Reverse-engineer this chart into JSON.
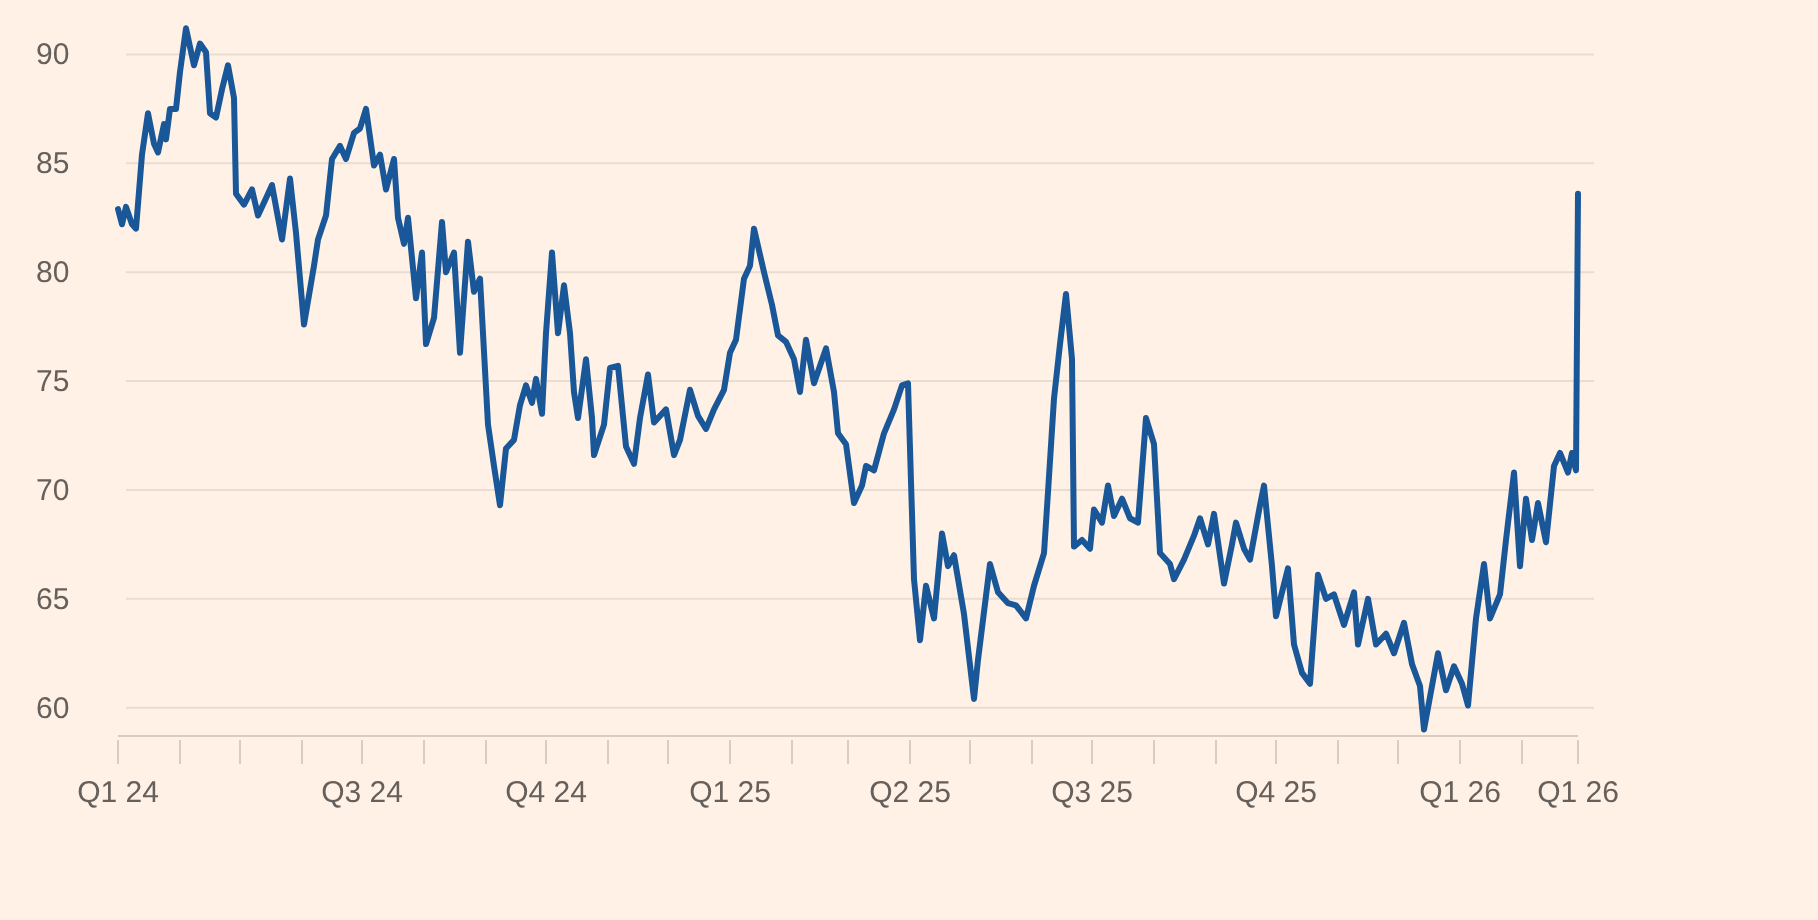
{
  "chart_data": {
    "type": "line",
    "grid": "y",
    "marker": "none",
    "line_style": "solid",
    "xlim": [
      "2024-03-01",
      "2026-03-01"
    ],
    "ylim": [
      58.7,
      92.5
    ],
    "yticks": [
      60,
      65,
      70,
      75,
      80,
      85,
      90
    ],
    "xticks": [
      {
        "value": "2024-03-01",
        "label": "Q1 24"
      },
      {
        "value": "2024-04-01",
        "label": null
      },
      {
        "value": "2024-05-01",
        "label": null
      },
      {
        "value": "2024-06-01",
        "label": null
      },
      {
        "value": "2024-07-01",
        "label": "Q3 24"
      },
      {
        "value": "2024-08-01",
        "label": null
      },
      {
        "value": "2024-09-01",
        "label": null
      },
      {
        "value": "2024-10-01",
        "label": "Q4 24"
      },
      {
        "value": "2024-11-01",
        "label": null
      },
      {
        "value": "2024-12-01",
        "label": null
      },
      {
        "value": "2025-01-01",
        "label": "Q1 25"
      },
      {
        "value": "2025-02-01",
        "label": null
      },
      {
        "value": "2025-03-01",
        "label": null
      },
      {
        "value": "2025-04-01",
        "label": "Q2 25"
      },
      {
        "value": "2025-05-01",
        "label": null
      },
      {
        "value": "2025-06-01",
        "label": null
      },
      {
        "value": "2025-07-01",
        "label": "Q3 25"
      },
      {
        "value": "2025-08-01",
        "label": null
      },
      {
        "value": "2025-09-01",
        "label": null
      },
      {
        "value": "2025-10-01",
        "label": "Q4 25"
      },
      {
        "value": "2025-11-01",
        "label": null
      },
      {
        "value": "2025-12-01",
        "label": null
      },
      {
        "value": "2026-01-01",
        "label": "Q1 26"
      },
      {
        "value": "2026-02-01",
        "label": null
      },
      {
        "value": "2026-03-01",
        "label": "Q1 26"
      }
    ],
    "x": [
      "2024-03-01",
      "2024-03-03",
      "2024-03-05",
      "2024-03-08",
      "2024-03-10",
      "2024-03-13",
      "2024-03-16",
      "2024-03-19",
      "2024-03-21",
      "2024-03-24",
      "2024-03-25",
      "2024-03-27",
      "2024-03-30",
      "2024-04-01",
      "2024-04-04",
      "2024-04-08",
      "2024-04-11",
      "2024-04-14",
      "2024-04-16",
      "2024-04-19",
      "2024-04-22",
      "2024-04-25",
      "2024-04-28",
      "2024-04-29",
      "2024-05-03",
      "2024-05-07",
      "2024-05-10",
      "2024-05-14",
      "2024-05-17",
      "2024-05-22",
      "2024-05-26",
      "2024-05-29",
      "2024-06-02",
      "2024-06-07",
      "2024-06-09",
      "2024-06-13",
      "2024-06-16",
      "2024-06-20",
      "2024-06-23",
      "2024-06-27",
      "2024-06-30",
      "2024-07-03",
      "2024-07-07",
      "2024-07-10",
      "2024-07-13",
      "2024-07-17",
      "2024-07-19",
      "2024-07-22",
      "2024-07-24",
      "2024-07-28",
      "2024-07-31",
      "2024-08-02",
      "2024-08-06",
      "2024-08-10",
      "2024-08-12",
      "2024-08-16",
      "2024-08-19",
      "2024-08-23",
      "2024-08-26",
      "2024-08-29",
      "2024-09-02",
      "2024-09-05",
      "2024-09-08",
      "2024-09-11",
      "2024-09-15",
      "2024-09-18",
      "2024-09-21",
      "2024-09-24",
      "2024-09-26",
      "2024-09-29",
      "2024-10-01",
      "2024-10-04",
      "2024-10-07",
      "2024-10-10",
      "2024-10-13",
      "2024-10-15",
      "2024-10-17",
      "2024-10-21",
      "2024-10-24",
      "2024-10-25",
      "2024-10-30",
      "2024-11-02",
      "2024-11-06",
      "2024-11-10",
      "2024-11-14",
      "2024-11-17",
      "2024-11-21",
      "2024-11-24",
      "2024-11-30",
      "2024-12-04",
      "2024-12-07",
      "2024-12-12",
      "2024-12-16",
      "2024-12-20",
      "2024-12-24",
      "2024-12-29",
      "2025-01-01",
      "2025-01-04",
      "2025-01-08",
      "2025-01-11",
      "2025-01-13",
      "2025-01-18",
      "2025-01-22",
      "2025-01-25",
      "2025-01-29",
      "2025-02-02",
      "2025-02-05",
      "2025-02-08",
      "2025-02-12",
      "2025-02-18",
      "2025-02-22",
      "2025-02-24",
      "2025-02-28",
      "2025-03-04",
      "2025-03-08",
      "2025-03-10",
      "2025-03-14",
      "2025-03-19",
      "2025-03-24",
      "2025-03-28",
      "2025-03-31",
      "2025-04-03",
      "2025-04-06",
      "2025-04-09",
      "2025-04-13",
      "2025-04-17",
      "2025-04-20",
      "2025-04-23",
      "2025-04-28",
      "2025-05-03",
      "2025-05-05",
      "2025-05-11",
      "2025-05-15",
      "2025-05-20",
      "2025-05-24",
      "2025-05-29",
      "2025-06-02",
      "2025-06-07",
      "2025-06-09",
      "2025-06-12",
      "2025-06-15",
      "2025-06-18",
      "2025-06-21",
      "2025-06-22",
      "2025-06-26",
      "2025-06-30",
      "2025-07-02",
      "2025-07-06",
      "2025-07-09",
      "2025-07-12",
      "2025-07-16",
      "2025-07-20",
      "2025-07-24",
      "2025-07-28",
      "2025-08-01",
      "2025-08-04",
      "2025-08-09",
      "2025-08-11",
      "2025-08-16",
      "2025-08-21",
      "2025-08-24",
      "2025-08-28",
      "2025-08-31",
      "2025-09-05",
      "2025-09-09",
      "2025-09-11",
      "2025-09-15",
      "2025-09-18",
      "2025-09-23",
      "2025-09-25",
      "2025-09-29",
      "2025-10-01",
      "2025-10-04",
      "2025-10-07",
      "2025-10-10",
      "2025-10-14",
      "2025-10-18",
      "2025-10-22",
      "2025-10-26",
      "2025-10-30",
      "2025-11-04",
      "2025-11-09",
      "2025-11-11",
      "2025-11-16",
      "2025-11-20",
      "2025-11-25",
      "2025-11-29",
      "2025-12-04",
      "2025-12-08",
      "2025-12-12",
      "2025-12-14",
      "2025-12-18",
      "2025-12-21",
      "2025-12-25",
      "2025-12-29",
      "2026-01-02",
      "2026-01-05",
      "2026-01-09",
      "2026-01-13",
      "2026-01-16",
      "2026-01-21",
      "2026-01-24",
      "2026-01-28",
      "2026-01-31",
      "2026-02-03",
      "2026-02-06",
      "2026-02-09",
      "2026-02-13",
      "2026-02-17",
      "2026-02-20",
      "2026-02-24",
      "2026-02-26",
      "2026-02-28",
      "2026-03-01"
    ],
    "series": [
      {
        "color": "#1a5799",
        "values": [
          82.9,
          82.2,
          83.0,
          82.2,
          82.0,
          85.4,
          87.3,
          85.9,
          85.5,
          86.8,
          86.1,
          87.5,
          87.5,
          89.2,
          91.2,
          89.5,
          90.5,
          90.1,
          87.3,
          87.1,
          88.4,
          89.5,
          88.0,
          83.6,
          83.1,
          83.8,
          82.6,
          83.4,
          84.0,
          81.5,
          84.3,
          81.8,
          77.6,
          80.3,
          81.5,
          82.6,
          85.2,
          85.8,
          85.2,
          86.4,
          86.6,
          87.5,
          84.9,
          85.4,
          83.8,
          85.2,
          82.5,
          81.3,
          82.5,
          78.8,
          80.9,
          76.7,
          77.9,
          82.3,
          80.0,
          80.9,
          76.3,
          81.4,
          79.1,
          79.7,
          73.0,
          71.1,
          69.3,
          71.9,
          72.3,
          73.9,
          74.8,
          74.0,
          75.1,
          73.5,
          77.2,
          80.9,
          77.2,
          79.4,
          77.2,
          74.5,
          73.3,
          76.0,
          73.3,
          71.6,
          73.0,
          75.6,
          75.7,
          72.0,
          71.2,
          73.3,
          75.3,
          73.1,
          73.7,
          71.6,
          72.3,
          74.6,
          73.4,
          72.8,
          73.7,
          74.6,
          76.3,
          76.9,
          79.7,
          80.3,
          82.0,
          80.0,
          78.5,
          77.1,
          76.8,
          76.0,
          74.5,
          76.9,
          74.9,
          76.5,
          74.5,
          72.6,
          72.1,
          69.4,
          70.2,
          71.1,
          70.9,
          72.6,
          73.7,
          74.8,
          74.9,
          65.9,
          63.1,
          65.6,
          64.1,
          68.0,
          66.5,
          67.0,
          64.3,
          60.4,
          62.2,
          66.6,
          65.3,
          64.8,
          64.7,
          64.1,
          65.6,
          67.1,
          69.9,
          74.2,
          76.7,
          79.0,
          76.0,
          67.4,
          67.7,
          67.3,
          69.1,
          68.5,
          70.2,
          68.8,
          69.6,
          68.7,
          68.5,
          73.3,
          72.1,
          67.1,
          66.6,
          65.9,
          66.8,
          67.9,
          68.7,
          67.5,
          68.9,
          65.7,
          67.5,
          68.5,
          67.3,
          66.8,
          69.3,
          70.2,
          66.5,
          64.2,
          65.3,
          66.4,
          62.9,
          61.6,
          61.1,
          66.1,
          65.0,
          65.2,
          63.8,
          65.3,
          62.9,
          65.0,
          62.9,
          63.4,
          62.5,
          63.9,
          62.0,
          61.0,
          59.0,
          61.0,
          62.5,
          60.8,
          61.9,
          61.1,
          60.1,
          64.1,
          66.6,
          64.1,
          65.2,
          67.7,
          70.8,
          66.5,
          69.6,
          67.7,
          69.4,
          67.6,
          71.1,
          71.7,
          70.8,
          71.7,
          70.9,
          83.6
        ]
      }
    ]
  }
}
